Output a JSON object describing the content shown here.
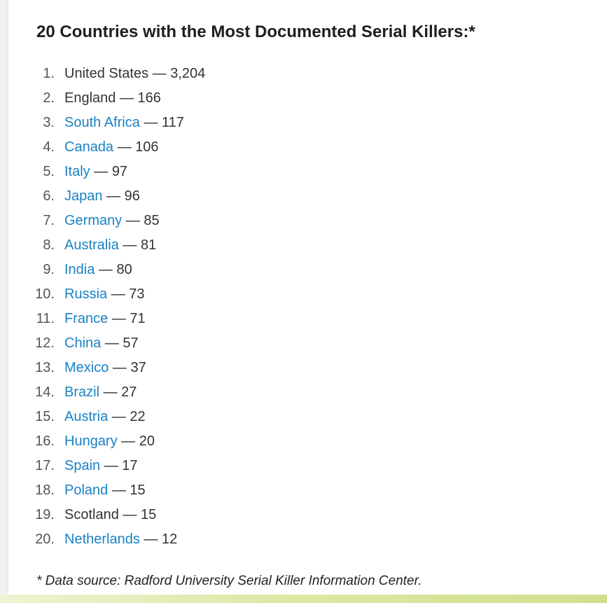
{
  "article": {
    "heading": "20 Countries with the Most Documented Serial Killers:*",
    "items": [
      {
        "rank": "1.",
        "country": "United States",
        "link": false,
        "count": "3,204"
      },
      {
        "rank": "2.",
        "country": "England",
        "link": false,
        "count": "166"
      },
      {
        "rank": "3.",
        "country": "South Africa",
        "link": true,
        "count": "117"
      },
      {
        "rank": "4.",
        "country": "Canada",
        "link": true,
        "count": "106"
      },
      {
        "rank": "5.",
        "country": "Italy",
        "link": true,
        "count": "97"
      },
      {
        "rank": "6.",
        "country": "Japan",
        "link": true,
        "count": "96"
      },
      {
        "rank": "7.",
        "country": "Germany",
        "link": true,
        "count": "85"
      },
      {
        "rank": "8.",
        "country": "Australia",
        "link": true,
        "count": "81"
      },
      {
        "rank": "9.",
        "country": "India",
        "link": true,
        "count": "80"
      },
      {
        "rank": "10.",
        "country": "Russia",
        "link": true,
        "count": "73"
      },
      {
        "rank": "11.",
        "country": "France",
        "link": true,
        "count": "71"
      },
      {
        "rank": "12.",
        "country": "China",
        "link": true,
        "count": "57"
      },
      {
        "rank": "13.",
        "country": "Mexico",
        "link": true,
        "count": "37"
      },
      {
        "rank": "14.",
        "country": "Brazil",
        "link": true,
        "count": "27"
      },
      {
        "rank": "15.",
        "country": "Austria",
        "link": true,
        "count": "22"
      },
      {
        "rank": "16.",
        "country": "Hungary",
        "link": true,
        "count": "20"
      },
      {
        "rank": "17.",
        "country": "Spain",
        "link": true,
        "count": "17"
      },
      {
        "rank": "18.",
        "country": "Poland",
        "link": true,
        "count": "15"
      },
      {
        "rank": "19.",
        "country": "Scotland",
        "link": false,
        "count": "15"
      },
      {
        "rank": "20.",
        "country": "Netherlands",
        "link": true,
        "count": "12"
      }
    ],
    "separator": " — ",
    "source_note": "* Data source: Radford University Serial Killer Information Center."
  },
  "colors": {
    "link": "#1a82c4",
    "text": "#333333",
    "heading": "#1e1e1e"
  }
}
